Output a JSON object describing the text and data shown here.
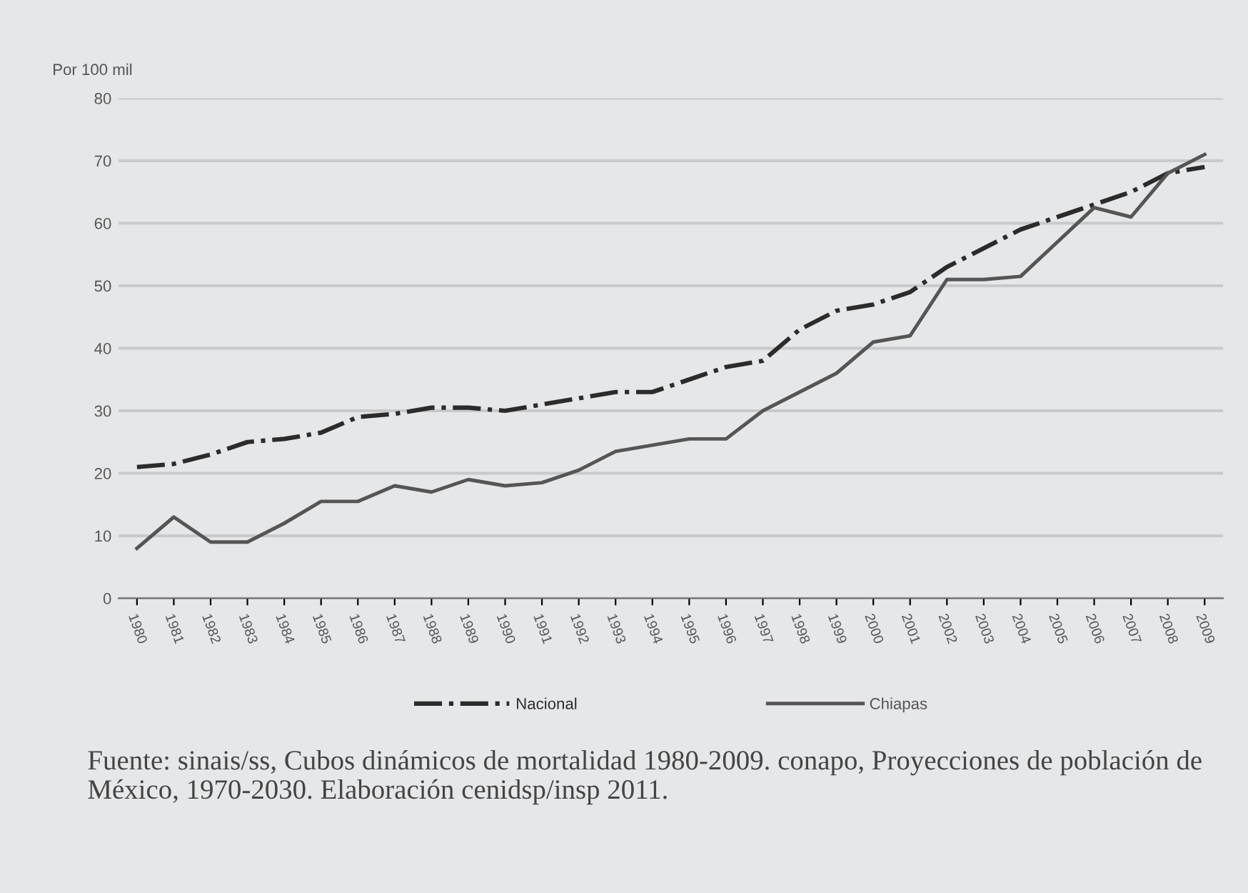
{
  "chart_data": {
    "type": "line",
    "ylabel": "Por 100 mil",
    "categories": [
      "1980",
      "1981",
      "1982",
      "1983",
      "1984",
      "1985",
      "1986",
      "1987",
      "1988",
      "1989",
      "1990",
      "1991",
      "1992",
      "1993",
      "1994",
      "1995",
      "1996",
      "1997",
      "1998",
      "1999",
      "2000",
      "2001",
      "2002",
      "2003",
      "2004",
      "2005",
      "2006",
      "2007",
      "2008",
      "2009"
    ],
    "series": [
      {
        "name": "Nacional",
        "color": "#2b2b2b",
        "line_style": "dashdot",
        "values": [
          21,
          21.5,
          23,
          25,
          25.5,
          26.5,
          29,
          29.5,
          30.5,
          30.5,
          30,
          31,
          32,
          33,
          33,
          35,
          37,
          38,
          43,
          46,
          47,
          49,
          53,
          56,
          59,
          61,
          63,
          65,
          68,
          69
        ]
      },
      {
        "name": "Chiapas",
        "color": "#555555",
        "line_style": "solid",
        "values": [
          8,
          13,
          9,
          9,
          12,
          15.5,
          15.5,
          18,
          17,
          19,
          18,
          18.5,
          20.5,
          23.5,
          24.5,
          25.5,
          25.5,
          30,
          33,
          36,
          41,
          42,
          51,
          51,
          51.5,
          57,
          62.5,
          61,
          68,
          71
        ]
      }
    ],
    "ylim": [
      0,
      80
    ],
    "yticks": [
      0,
      10,
      20,
      30,
      40,
      50,
      60,
      70,
      80
    ],
    "grid": "y",
    "legend": "bottom",
    "marker": "none",
    "annotations": [
      "Fuente: sinais/ss, Cubos dinámicos de mortalidad 1980-2009. conapo, Proyecciones de población de México, 1970-2030. Elaboración cenidsp/insp 2011."
    ]
  }
}
